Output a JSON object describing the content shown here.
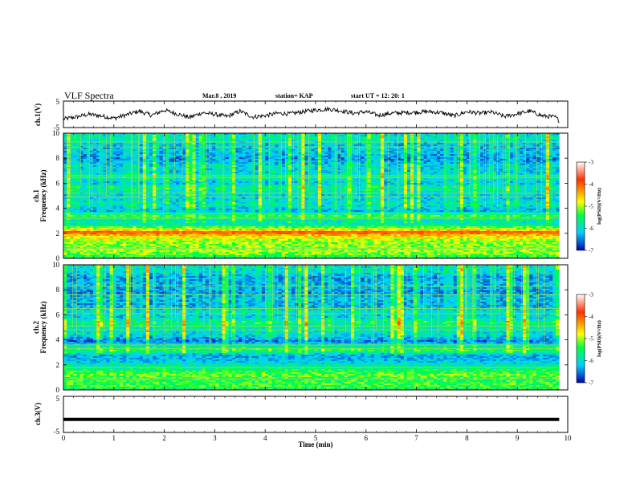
{
  "header": {
    "title": "VLF Spectra",
    "date": "Mar.8 , 2019",
    "station": "station= KAP",
    "start": "start UT = 12: 20: 1"
  },
  "chart_data": [
    {
      "type": "line",
      "id": "ch1_waveform",
      "ylabel": "ch.1(V)",
      "ylim": [
        -5,
        5
      ],
      "yticks": [
        "5",
        "-5"
      ],
      "xlim": [
        0,
        10
      ],
      "x_end_min": 9.83,
      "series": [
        {
          "x_min": [
            0,
            0.25,
            0.5,
            0.75,
            1.0,
            1.25,
            1.5,
            1.75,
            2.0,
            2.25,
            2.5,
            2.75,
            3.0,
            3.25,
            3.5,
            3.75,
            4.0,
            4.25,
            4.5,
            4.75,
            5.0,
            5.25,
            5.5,
            5.75,
            6.0,
            6.25,
            6.5,
            6.75,
            7.0,
            7.25,
            7.5,
            7.75,
            8.0,
            8.25,
            8.5,
            8.75,
            9.0,
            9.25,
            9.5,
            9.75,
            9.83
          ],
          "volts": [
            -1.8,
            -1.0,
            0.0,
            -0.6,
            -1.5,
            -0.2,
            1.2,
            -0.4,
            1.6,
            0.2,
            -1.2,
            0.6,
            0.0,
            -0.8,
            1.2,
            -1.0,
            -0.5,
            0.4,
            0.2,
            1.0,
            1.6,
            2.0,
            1.4,
            0.4,
            1.0,
            -0.4,
            0.4,
            0.6,
            0.8,
            1.0,
            0.6,
            -0.6,
            1.0,
            0.4,
            0.8,
            -0.8,
            0.2,
            1.2,
            -0.6,
            -1.0,
            -2.4
          ]
        }
      ]
    },
    {
      "type": "heatmap",
      "id": "ch1_spectrogram",
      "ylabel": "ch.1",
      "freq_label": "Frequency (kHz)",
      "ylim": [
        0,
        10
      ],
      "yticks": [
        "10",
        "8",
        "6",
        "4",
        "2",
        "0"
      ],
      "xlim": [
        0,
        10
      ],
      "data_end_min": 9.83,
      "colorscale": "log(PSD)(V^2/Hz)",
      "level_range": [
        -7,
        -3
      ],
      "profile": {
        "freq_khz": [
          0.0,
          0.3,
          0.6,
          1.0,
          1.5,
          1.9,
          2.1,
          2.3,
          2.8,
          3.1,
          3.4,
          3.8,
          4.3,
          4.9,
          5.3,
          5.7,
          6.0,
          6.5,
          6.9,
          7.4,
          7.9,
          8.4,
          9.0,
          9.6,
          10.0
        ],
        "log_psd": [
          -5.6,
          -5.2,
          -5.0,
          -5.1,
          -5.0,
          -4.4,
          -3.8,
          -4.8,
          -6.0,
          -5.8,
          -5.4,
          -6.3,
          -6.0,
          -6.2,
          -6.0,
          -5.8,
          -6.3,
          -5.8,
          -6.2,
          -6.1,
          -6.5,
          -6.3,
          -6.3,
          -5.9,
          -6.1
        ]
      }
    },
    {
      "type": "heatmap",
      "id": "ch2_spectrogram",
      "ylabel": "ch.2",
      "freq_label": "Frequency (kHz)",
      "ylim": [
        0,
        10
      ],
      "yticks": [
        "10",
        "8",
        "6",
        "4",
        "2",
        "0"
      ],
      "xlim": [
        0,
        10
      ],
      "data_end_min": 9.83,
      "colorscale": "log(PSD)(V^2/Hz)",
      "level_range": [
        -7,
        -3
      ],
      "profile": {
        "freq_khz": [
          0.0,
          0.4,
          0.8,
          1.2,
          1.7,
          2.3,
          2.8,
          3.2,
          3.5,
          3.9,
          4.4,
          5.0,
          5.4,
          5.8,
          6.3,
          6.8,
          7.3,
          7.8,
          8.3,
          9.0,
          9.5,
          10.0
        ],
        "log_psd": [
          -5.5,
          -5.3,
          -5.4,
          -5.2,
          -5.6,
          -6.2,
          -6.3,
          -5.4,
          -5.8,
          -6.6,
          -6.1,
          -5.9,
          -5.6,
          -6.2,
          -6.0,
          -6.4,
          -6.2,
          -6.5,
          -6.3,
          -6.4,
          -6.0,
          -6.0
        ]
      }
    },
    {
      "type": "line",
      "id": "ch3_waveform",
      "ylabel": "ch.3(V)",
      "ylim": [
        -5,
        5
      ],
      "yticks": [
        "5",
        "-5"
      ],
      "xlim": [
        0,
        10
      ],
      "x_end_min": 9.83,
      "series": [
        {
          "x_min": [
            0,
            9.83
          ],
          "volts": [
            -1.4,
            -1.4
          ]
        }
      ]
    }
  ],
  "x_axis": {
    "label": "Time (min)",
    "ticks": [
      "0",
      "1",
      "2",
      "3",
      "4",
      "5",
      "6",
      "7",
      "8",
      "9",
      "10"
    ]
  },
  "colorbar": {
    "label": "log(PSD)(V²/Hz)",
    "ticks": [
      "-3",
      "-4",
      "-5",
      "-6",
      "-7"
    ],
    "stops": [
      "#ffffff",
      "#ff3000",
      "#ffff00",
      "#00ff40",
      "#00d0ff",
      "#0000b0"
    ]
  }
}
